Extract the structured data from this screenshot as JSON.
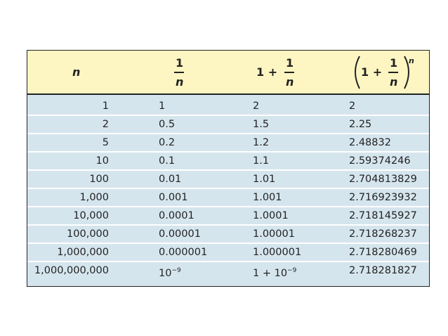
{
  "header": [
    {
      "symbol": "n"
    },
    {
      "numerator": "1",
      "denominator": "n"
    },
    {
      "lead": "1 +",
      "numerator": "1",
      "denominator": "n"
    },
    {
      "lead": "1 +",
      "numerator": "1",
      "denominator": "n",
      "exponent": "n"
    }
  ],
  "rows": [
    [
      "1",
      "1",
      "2",
      "2"
    ],
    [
      "2",
      "0.5",
      "1.5",
      "2.25"
    ],
    [
      "5",
      "0.2",
      "1.2",
      "2.48832"
    ],
    [
      "10",
      "0.1",
      "1.1",
      "2.59374246"
    ],
    [
      "100",
      "0.01",
      "1.01",
      "2.704813829"
    ],
    [
      "1,000",
      "0.001",
      "1.001",
      "2.716923932"
    ],
    [
      "10,000",
      "0.0001",
      "1.0001",
      "2.718145927"
    ],
    [
      "100,000",
      "0.00001",
      "1.00001",
      "2.718268237"
    ],
    [
      "1,000,000",
      "0.000001",
      "1.000001",
      "2.718280469"
    ],
    [
      "1,000,000,000",
      {
        "base": "10",
        "exponent": "−9"
      },
      {
        "base": "1 + 10",
        "exponent": "−9"
      },
      "2.718281827"
    ]
  ]
}
